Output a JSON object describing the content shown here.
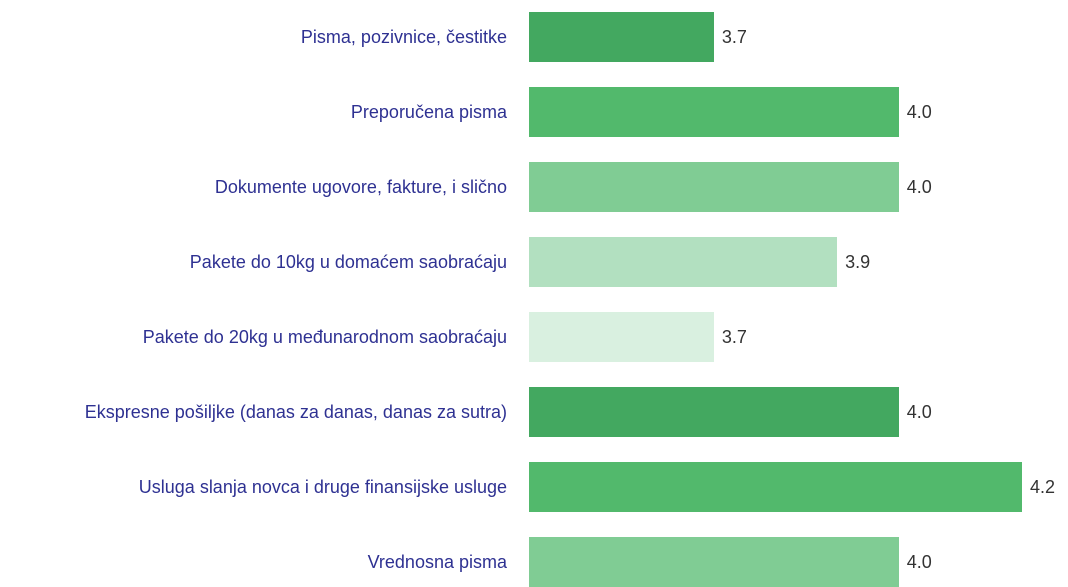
{
  "chart_data": {
    "type": "barh",
    "categories": [
      "Pisma, pozivnice, čestitke",
      "Preporučena pisma",
      "Dokumente ugovore, fakture, i slično",
      "Pakete do 10kg u domaćem saobraćaju",
      "Pakete do 20kg u međunarodnom saobraćaju",
      "Ekspresne pošiljke (danas za danas, danas za sutra)",
      "Usluga slanja novca i druge finansijske usluge",
      "Vrednosna pisma"
    ],
    "values": [
      3.7,
      4.0,
      4.0,
      3.9,
      3.7,
      4.0,
      4.2,
      4.0
    ],
    "value_labels": [
      "3.7",
      "4.0",
      "4.0",
      "3.9",
      "3.7",
      "4.0",
      "4.2",
      "4.0"
    ],
    "colors": [
      "#43a860",
      "#52b96c",
      "#80cc94",
      "#b2e0c0",
      "#d9f0e0",
      "#43a860",
      "#52b96c",
      "#80cc94"
    ],
    "xlim": [
      3.4,
      4.2
    ]
  }
}
